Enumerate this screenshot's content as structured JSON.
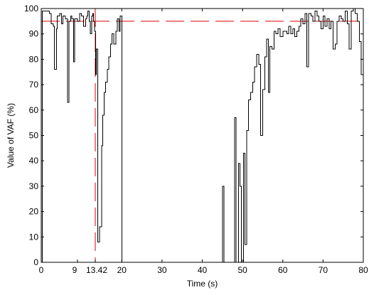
{
  "chart_data": {
    "type": "line",
    "title": "",
    "xlabel": "Time (s)",
    "ylabel": "Value of VAF (%)",
    "xlim": [
      0,
      80
    ],
    "ylim": [
      0,
      100
    ],
    "xticks": [
      0,
      9,
      13.42,
      20,
      30,
      40,
      50,
      60,
      70,
      80
    ],
    "xtick_labels": [
      "0",
      "9",
      "13.42",
      "20",
      "30",
      "40",
      "50",
      "60",
      "70",
      "80"
    ],
    "yticks": [
      0,
      10,
      20,
      30,
      40,
      50,
      60,
      70,
      80,
      90,
      100
    ],
    "ytick_labels": [
      "0",
      "10",
      "20",
      "30",
      "40",
      "50",
      "60",
      "70",
      "80",
      "90",
      "100"
    ],
    "grid": false,
    "legend": "none",
    "series": [
      {
        "color": "#000000",
        "style": "stairs",
        "points": [
          [
            0,
            0
          ],
          [
            0.3,
            99
          ],
          [
            1,
            99
          ],
          [
            2,
            98
          ],
          [
            2.5,
            94
          ],
          [
            3,
            93
          ],
          [
            3.3,
            76
          ],
          [
            3.8,
            92
          ],
          [
            4,
            97
          ],
          [
            4.6,
            98
          ],
          [
            5,
            94
          ],
          [
            5.4,
            97
          ],
          [
            6,
            96
          ],
          [
            6.5,
            63
          ],
          [
            6.9,
            95
          ],
          [
            7.3,
            97
          ],
          [
            7.6,
            96
          ],
          [
            8,
            79
          ],
          [
            8.3,
            96
          ],
          [
            9,
            95
          ],
          [
            9.5,
            98
          ],
          [
            10,
            97
          ],
          [
            10.5,
            93
          ],
          [
            11,
            96
          ],
          [
            11.3,
            97
          ],
          [
            11.6,
            99
          ],
          [
            11.9,
            95
          ],
          [
            12.2,
            90
          ],
          [
            12.5,
            97
          ],
          [
            12.8,
            98
          ],
          [
            13,
            95
          ],
          [
            13.2,
            91
          ],
          [
            13.5,
            74
          ],
          [
            13.7,
            84
          ],
          [
            14,
            8
          ],
          [
            14.5,
            14
          ],
          [
            15,
            46
          ],
          [
            15.3,
            58
          ],
          [
            15.6,
            67
          ],
          [
            16,
            71
          ],
          [
            16.4,
            76
          ],
          [
            16.8,
            81
          ],
          [
            17.2,
            86
          ],
          [
            17.6,
            90
          ],
          [
            18,
            86
          ],
          [
            18.5,
            91
          ],
          [
            18.9,
            96
          ],
          [
            19.3,
            91
          ],
          [
            19.6,
            97
          ],
          [
            20,
            0
          ],
          [
            45,
            30
          ],
          [
            45.4,
            0
          ],
          [
            48,
            57
          ],
          [
            48.4,
            0
          ],
          [
            49,
            39
          ],
          [
            49.4,
            30
          ],
          [
            49.7,
            0
          ],
          [
            50.2,
            43
          ],
          [
            50.6,
            7
          ],
          [
            51,
            52
          ],
          [
            51.5,
            64
          ],
          [
            52,
            67
          ],
          [
            52.5,
            71
          ],
          [
            53,
            77
          ],
          [
            53.5,
            82
          ],
          [
            54,
            78
          ],
          [
            54.5,
            50
          ],
          [
            55,
            68
          ],
          [
            55.5,
            81
          ],
          [
            56,
            88
          ],
          [
            56.4,
            67
          ],
          [
            56.8,
            85
          ],
          [
            57.3,
            84
          ],
          [
            57.8,
            91
          ],
          [
            58.3,
            90
          ],
          [
            58.8,
            92
          ],
          [
            59.3,
            89
          ],
          [
            60,
            91
          ],
          [
            61,
            90
          ],
          [
            61.5,
            93
          ],
          [
            62,
            90
          ],
          [
            62.5,
            92
          ],
          [
            63,
            89
          ],
          [
            63.5,
            91
          ],
          [
            64,
            93
          ],
          [
            64.5,
            96
          ],
          [
            65,
            94
          ],
          [
            65.5,
            98
          ],
          [
            66,
            77
          ],
          [
            66.4,
            98
          ],
          [
            67,
            97
          ],
          [
            67.5,
            95
          ],
          [
            68,
            99
          ],
          [
            68.5,
            97
          ],
          [
            69,
            95
          ],
          [
            69.5,
            92
          ],
          [
            70,
            97
          ],
          [
            70.5,
            93
          ],
          [
            71,
            96
          ],
          [
            71.5,
            92
          ],
          [
            72,
            95
          ],
          [
            72.5,
            84
          ],
          [
            73,
            86
          ],
          [
            73.5,
            95
          ],
          [
            74,
            97
          ],
          [
            74.5,
            96
          ],
          [
            75,
            95
          ],
          [
            75.5,
            99
          ],
          [
            76,
            94
          ],
          [
            76.5,
            84
          ],
          [
            77,
            99
          ],
          [
            77.5,
            100
          ],
          [
            78,
            98
          ],
          [
            78.5,
            95
          ],
          [
            79,
            87
          ],
          [
            79.5,
            74
          ],
          [
            80,
            74
          ]
        ]
      }
    ],
    "reference_lines": [
      {
        "orientation": "horizontal",
        "value": 95,
        "color": "#e00000",
        "dash": "long-dash"
      },
      {
        "orientation": "vertical",
        "value": 13.42,
        "color": "#e00000",
        "dash": "long-dash"
      }
    ]
  }
}
